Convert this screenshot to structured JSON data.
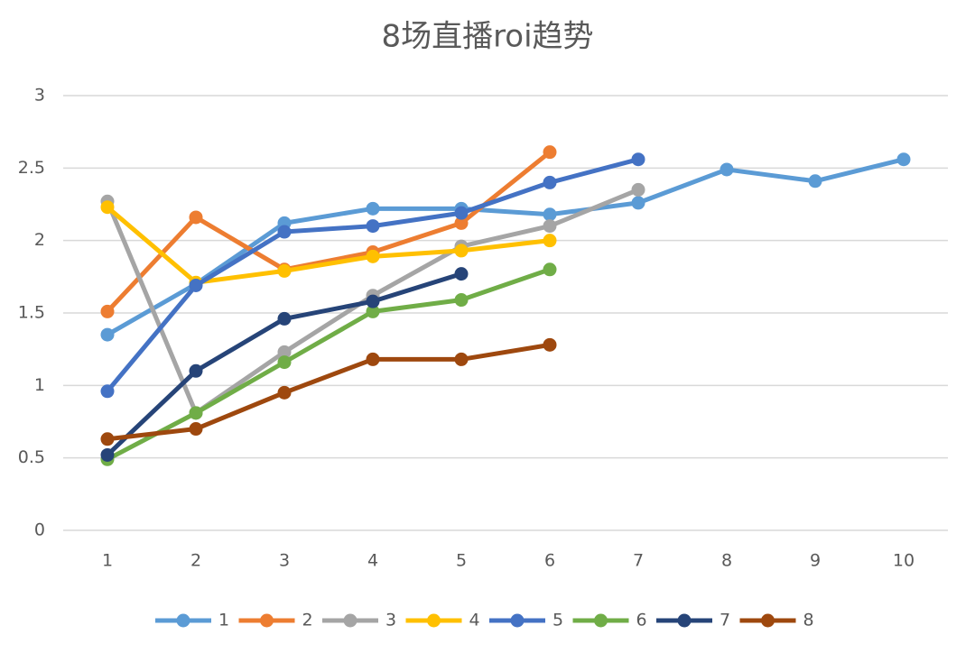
{
  "chart_data": {
    "type": "line",
    "title": "8场直播roi趋势",
    "categories": [
      "1",
      "2",
      "3",
      "4",
      "5",
      "6",
      "7",
      "8",
      "9",
      "10"
    ],
    "series": [
      {
        "name": "1",
        "color": "#5b9bd5",
        "values": [
          1.35,
          1.7,
          2.12,
          2.22,
          2.22,
          2.18,
          2.26,
          2.49,
          2.41,
          2.56
        ]
      },
      {
        "name": "2",
        "color": "#ed7d31",
        "values": [
          1.51,
          2.16,
          1.8,
          1.92,
          2.12,
          2.61,
          null,
          null,
          null,
          null
        ]
      },
      {
        "name": "3",
        "color": "#a5a5a5",
        "values": [
          2.27,
          0.81,
          1.23,
          1.62,
          1.96,
          2.1,
          2.35,
          null,
          null,
          null
        ]
      },
      {
        "name": "4",
        "color": "#ffc000",
        "values": [
          2.23,
          1.71,
          1.79,
          1.89,
          1.93,
          2.0,
          null,
          null,
          null,
          null
        ]
      },
      {
        "name": "5",
        "color": "#4472c4",
        "values": [
          0.96,
          1.69,
          2.06,
          2.1,
          2.19,
          2.4,
          2.56,
          null,
          null,
          null
        ]
      },
      {
        "name": "6",
        "color": "#70ad47",
        "values": [
          0.49,
          0.81,
          1.16,
          1.51,
          1.59,
          1.8,
          null,
          null,
          null,
          null
        ]
      },
      {
        "name": "7",
        "color": "#264478",
        "values": [
          0.52,
          1.1,
          1.46,
          1.58,
          1.77,
          null,
          null,
          null,
          null,
          null
        ]
      },
      {
        "name": "8",
        "color": "#9e480e",
        "values": [
          0.63,
          0.7,
          0.95,
          1.18,
          1.18,
          1.28,
          null,
          null,
          null,
          null
        ]
      }
    ],
    "ylim": [
      0,
      3
    ],
    "yticks": [
      0,
      0.5,
      1,
      1.5,
      2,
      2.5,
      3
    ],
    "grid": true,
    "legend": "bottom"
  }
}
